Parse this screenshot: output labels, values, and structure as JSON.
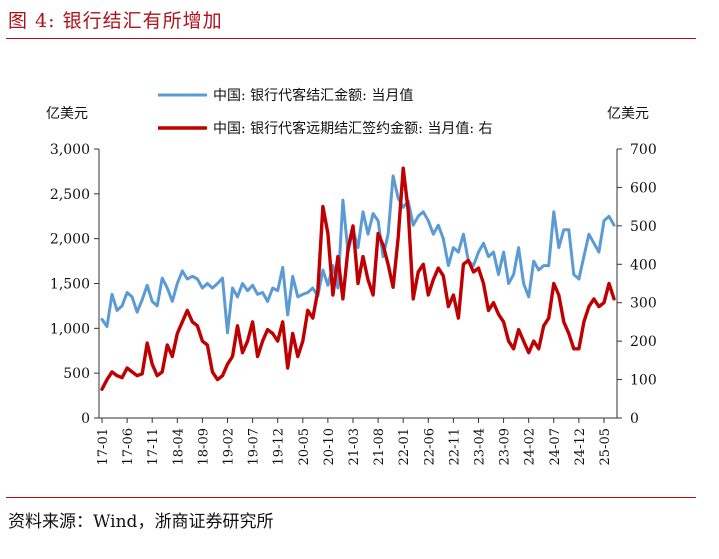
{
  "figure": {
    "title": "图 4:   银行结汇有所增加",
    "source": "资料来源：Wind，浙商证券研究所"
  },
  "colors": {
    "accent": "#b0121b",
    "series_blue": "#5b9bd5",
    "series_red": "#c00000"
  },
  "chart_data": {
    "type": "line",
    "title": "",
    "legend_placement": "top",
    "grid": false,
    "xlabel": "",
    "x_tick_labels": [
      "17-01",
      "17-06",
      "17-11",
      "18-04",
      "18-09",
      "19-02",
      "19-07",
      "19-12",
      "20-05",
      "20-10",
      "21-03",
      "21-08",
      "22-01",
      "22-06",
      "22-11",
      "23-04",
      "23-09",
      "24-02",
      "24-07",
      "24-12",
      "25-05"
    ],
    "x": [
      "17-01",
      "17-02",
      "17-03",
      "17-04",
      "17-05",
      "17-06",
      "17-07",
      "17-08",
      "17-09",
      "17-10",
      "17-11",
      "17-12",
      "18-01",
      "18-02",
      "18-03",
      "18-04",
      "18-05",
      "18-06",
      "18-07",
      "18-08",
      "18-09",
      "18-10",
      "18-11",
      "18-12",
      "19-01",
      "19-02",
      "19-03",
      "19-04",
      "19-05",
      "19-06",
      "19-07",
      "19-08",
      "19-09",
      "19-10",
      "19-11",
      "19-12",
      "20-01",
      "20-02",
      "20-03",
      "20-04",
      "20-05",
      "20-06",
      "20-07",
      "20-08",
      "20-09",
      "20-10",
      "20-11",
      "20-12",
      "21-01",
      "21-02",
      "21-03",
      "21-04",
      "21-05",
      "21-06",
      "21-07",
      "21-08",
      "21-09",
      "21-10",
      "21-11",
      "21-12",
      "22-01",
      "22-02",
      "22-03",
      "22-04",
      "22-05",
      "22-06",
      "22-07",
      "22-08",
      "22-09",
      "22-10",
      "22-11",
      "22-12",
      "23-01",
      "23-02",
      "23-03",
      "23-04",
      "23-05",
      "23-06",
      "23-07",
      "23-08",
      "23-09",
      "23-10",
      "23-11",
      "23-12",
      "24-01",
      "24-02",
      "24-03",
      "24-04",
      "24-05",
      "24-06",
      "24-07",
      "24-08",
      "24-09",
      "24-10",
      "24-11",
      "24-12",
      "25-01",
      "25-02",
      "25-03",
      "25-04",
      "25-05",
      "25-06",
      "25-07"
    ],
    "y_left": {
      "label": "亿美元",
      "range": [
        0,
        3000
      ],
      "ticks": [
        "0",
        "500",
        "1,000",
        "1,500",
        "2,000",
        "2,500",
        "3,000"
      ]
    },
    "y_right": {
      "label": "亿美元",
      "range": [
        0,
        700
      ],
      "ticks": [
        "0",
        "100",
        "200",
        "300",
        "400",
        "500",
        "600",
        "700"
      ]
    },
    "series": [
      {
        "name": "中国: 银行代客结汇金额: 当月值",
        "axis": "left",
        "values": [
          1100,
          1020,
          1380,
          1200,
          1250,
          1400,
          1350,
          1180,
          1320,
          1480,
          1300,
          1250,
          1560,
          1450,
          1300,
          1500,
          1640,
          1550,
          1580,
          1550,
          1450,
          1500,
          1450,
          1500,
          1560,
          950,
          1450,
          1350,
          1500,
          1420,
          1480,
          1380,
          1400,
          1300,
          1450,
          1420,
          1680,
          1150,
          1580,
          1350,
          1380,
          1400,
          1450,
          1360,
          1650,
          1480,
          1700,
          1450,
          2430,
          1850,
          2100,
          1900,
          2300,
          2050,
          2280,
          2200,
          1800,
          2050,
          2700,
          2450,
          2350,
          2420,
          2150,
          2250,
          2300,
          2200,
          2050,
          2150,
          2000,
          1700,
          1900,
          1850,
          2050,
          1750,
          1700,
          1850,
          1950,
          1800,
          1850,
          1600,
          1850,
          1500,
          1600,
          1900,
          1500,
          1350,
          1750,
          1650,
          1700,
          1700,
          2300,
          1900,
          2100,
          2100,
          1600,
          1550,
          1800,
          2050,
          1950,
          1850,
          2200,
          2250,
          2150
        ]
      },
      {
        "name": "中国: 银行代客远期结汇签约金额: 当月值: 右",
        "axis": "right",
        "values": [
          75,
          100,
          120,
          110,
          105,
          130,
          120,
          110,
          115,
          195,
          140,
          110,
          120,
          190,
          160,
          220,
          250,
          280,
          250,
          240,
          200,
          190,
          120,
          100,
          110,
          140,
          160,
          240,
          170,
          200,
          250,
          160,
          200,
          230,
          220,
          200,
          250,
          130,
          220,
          160,
          200,
          280,
          260,
          330,
          550,
          480,
          320,
          420,
          310,
          440,
          500,
          350,
          420,
          360,
          320,
          480,
          450,
          400,
          340,
          470,
          650,
          540,
          310,
          380,
          400,
          320,
          360,
          390,
          370,
          290,
          320,
          260,
          400,
          410,
          380,
          390,
          350,
          280,
          300,
          270,
          250,
          200,
          180,
          230,
          200,
          170,
          200,
          180,
          240,
          260,
          350,
          320,
          250,
          220,
          180,
          180,
          250,
          290,
          310,
          290,
          300,
          350,
          310
        ]
      }
    ]
  }
}
